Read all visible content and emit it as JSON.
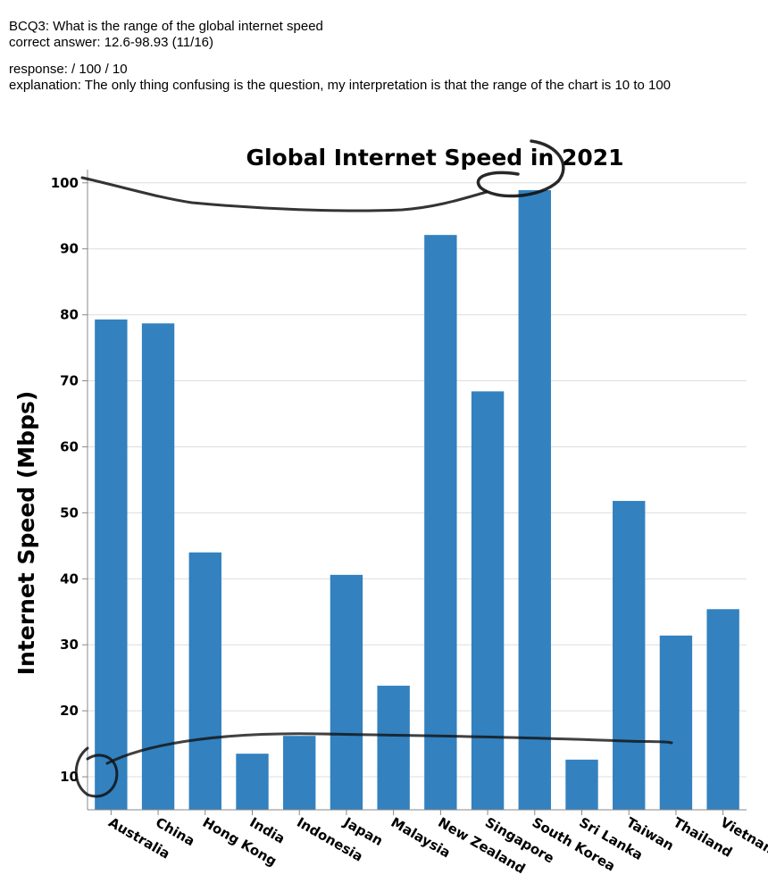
{
  "question": {
    "line1": "BCQ3: What is the range of the global internet speed",
    "line2": "correct answer: 12.6-98.93 (11/16)"
  },
  "response": {
    "line1": "response:  / 100 / 10",
    "line2": "explanation: The only thing confusing is the question, my interpretation is that the range of the chart is 10 to 100"
  },
  "colors": {
    "bar": "#3381bf",
    "grid": "#dddddd",
    "axis": "#888888",
    "ink": "#000000"
  },
  "chart_data": {
    "type": "bar",
    "title": "Global Internet Speed in 2021",
    "xlabel": "",
    "ylabel": "Internet Speed (Mbps)",
    "ylim": [
      5,
      102
    ],
    "yticks": [
      10,
      20,
      30,
      40,
      50,
      60,
      70,
      80,
      90,
      100
    ],
    "grid": true,
    "categories": [
      "Australia",
      "China",
      "Hong Kong",
      "India",
      "Indonesia",
      "Japan",
      "Malaysia",
      "New Zealand",
      "Singapore",
      "South Korea",
      "Sri Lanka",
      "Taiwan",
      "Thailand",
      "Vietnam"
    ],
    "values": [
      79.3,
      78.7,
      44.0,
      13.5,
      16.2,
      40.6,
      23.8,
      92.1,
      68.4,
      98.9,
      12.6,
      51.8,
      31.4,
      35.4
    ]
  }
}
